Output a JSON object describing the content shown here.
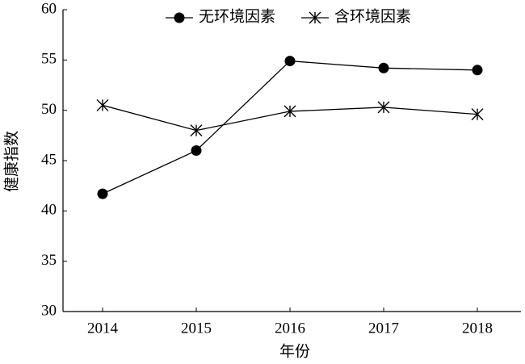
{
  "chart_data": {
    "type": "line",
    "xlabel": "年份",
    "ylabel": "健康指数",
    "categories": [
      "2014",
      "2015",
      "2016",
      "2017",
      "2018"
    ],
    "series": [
      {
        "name": "无环境因素",
        "color": "#000000",
        "marker": "circle",
        "values": [
          41.7,
          46.0,
          54.9,
          54.2,
          54.0
        ]
      },
      {
        "name": "含环境因素",
        "color": "#000000",
        "marker": "star",
        "values": [
          50.5,
          48.0,
          49.9,
          50.3,
          49.6
        ]
      }
    ],
    "ylim": [
      30,
      60
    ],
    "yticks": [
      30,
      35,
      40,
      45,
      50,
      55,
      60
    ],
    "grid": false
  }
}
